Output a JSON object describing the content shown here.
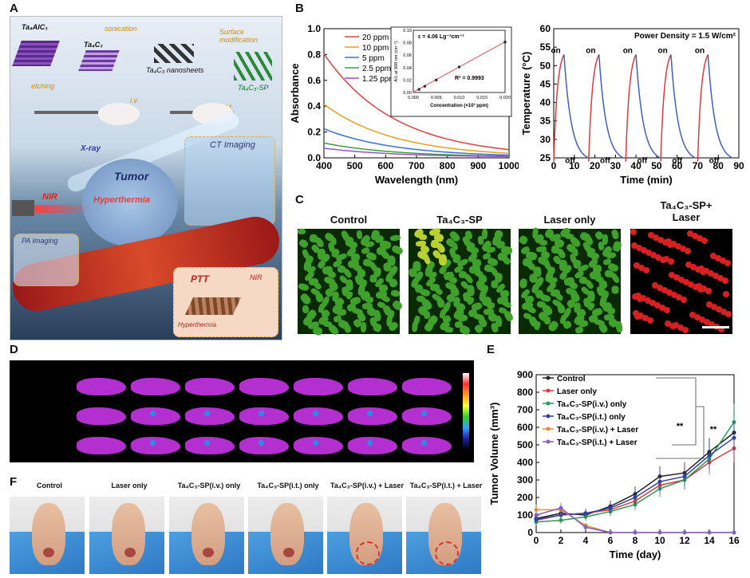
{
  "panels": {
    "A": "A",
    "B": "B",
    "C": "C",
    "D": "D",
    "E": "E",
    "F": "F"
  },
  "schematic": {
    "ta4alc3": "Ta₄AlC₃",
    "ta4c3": "Ta₄C₃",
    "sonication": "sonication",
    "surface_mod": "Surface modification",
    "nanosheets": "Ta₄C₃ nanosheets",
    "etching": "etching",
    "iv": "i.v.",
    "it": "i.t.",
    "sp": "Ta₄C₃-SP",
    "xray": "X-ray",
    "tumor": "Tumor",
    "ct": "CT Imaging",
    "nir": "NIR",
    "hyper": "Hyperthermia",
    "pa": "PA Imaging",
    "ptt": "PTT",
    "hyper2": "Hyperthermia",
    "nir2": "NIR"
  },
  "chart_absorb": {
    "type": "line",
    "xlabel": "Wavelength (nm)",
    "ylabel": "Absorbance",
    "xlim": [
      400,
      1000
    ],
    "ylim": [
      0,
      1.0
    ],
    "xticks": [
      "400",
      "500",
      "600",
      "700",
      "800",
      "900",
      "1000"
    ],
    "yticks": [
      "0.0",
      "0.2",
      "0.4",
      "0.6",
      "0.8",
      "1.0"
    ],
    "series": [
      {
        "name": "20 ppm",
        "color": "#e04040",
        "start": 0.8
      },
      {
        "name": "10 ppm",
        "color": "#e8a020",
        "start": 0.41
      },
      {
        "name": "5 ppm",
        "color": "#3e6fd8",
        "start": 0.22
      },
      {
        "name": "2.5 ppm",
        "color": "#3aa040",
        "start": 0.11
      },
      {
        "name": "1.25 ppm",
        "color": "#9a50c8",
        "start": 0.07
      }
    ],
    "inset": {
      "eq": "ε = 4.06 Lg⁻¹cm⁻¹",
      "r2": "R² = 0.9993",
      "xlabel": "Concentration (×10³ ppm)",
      "ylabel": "A/L at 808 nm (cm⁻¹)",
      "xticks": [
        "0.000",
        "0.005",
        "0.010",
        "0.015",
        "0.020"
      ],
      "yticks": [
        "0.00",
        "0.02",
        "0.04",
        "0.06",
        "0.08",
        "0.10"
      ],
      "x": [
        0.00125,
        0.0025,
        0.005,
        0.01,
        0.02
      ],
      "y": [
        0.005,
        0.01,
        0.02,
        0.041,
        0.081
      ]
    }
  },
  "chart_temp": {
    "type": "line",
    "xlabel": "Time (min)",
    "ylabel": "Temperature (°C)",
    "xlim": [
      0,
      90
    ],
    "ylim": [
      25,
      60
    ],
    "xticks": [
      "0",
      "10",
      "20",
      "30",
      "40",
      "50",
      "60",
      "70",
      "80",
      "90"
    ],
    "yticks": [
      "25",
      "30",
      "35",
      "40",
      "45",
      "50",
      "55",
      "60"
    ],
    "title": "Power Density = 1.5 W/cm²",
    "cycles": [
      0,
      17,
      35,
      52,
      70
    ],
    "on_label": "on",
    "off_label": "off",
    "peak": 53,
    "base": 24
  },
  "micro": {
    "labels": [
      "Control",
      "Ta₄C₃-SP",
      "Laser only",
      "Ta₄C₃-SP+\nLaser"
    ],
    "colors": [
      "#3fa02c",
      "#3fa02c",
      "#3fa02c",
      "#d82020"
    ]
  },
  "chart_tumor": {
    "type": "line",
    "xlabel": "Time (day)",
    "ylabel": "Tumor Volume (mm³)",
    "xlim": [
      0,
      16
    ],
    "ylim": [
      0,
      900
    ],
    "xticks": [
      "0",
      "2",
      "4",
      "6",
      "8",
      "10",
      "12",
      "14",
      "16"
    ],
    "yticks": [
      "0",
      "100",
      "200",
      "300",
      "400",
      "500",
      "600",
      "700",
      "800",
      "900"
    ],
    "x": [
      0,
      2,
      4,
      6,
      8,
      10,
      12,
      14,
      16
    ],
    "sig": "**",
    "series": [
      {
        "name": "Control",
        "color": "#222222",
        "values": [
          80,
          110,
          100,
          150,
          220,
          320,
          340,
          460,
          570
        ]
      },
      {
        "name": "Laser only",
        "color": "#e03a3a",
        "values": [
          70,
          100,
          110,
          130,
          180,
          270,
          300,
          400,
          480
        ]
      },
      {
        "name": "Ta₄C₃-SP(i.v.) only",
        "color": "#2a9a5a",
        "values": [
          60,
          70,
          90,
          120,
          160,
          250,
          300,
          420,
          630
        ]
      },
      {
        "name": "Ta₄C₃-SP(i.t.) only",
        "color": "#3040a0",
        "values": [
          75,
          100,
          110,
          140,
          200,
          290,
          320,
          440,
          540
        ]
      },
      {
        "name": "Ta₄C₃-SP(i.v.) + Laser",
        "color": "#e89030",
        "values": [
          130,
          130,
          40,
          0,
          0,
          0,
          0,
          0,
          0
        ]
      },
      {
        "name": "Ta₄C₃-SP(i.t.) + Laser",
        "color": "#8060c0",
        "values": [
          100,
          140,
          30,
          0,
          0,
          0,
          0,
          0,
          0
        ]
      }
    ]
  },
  "photos": {
    "labels": [
      "Control",
      "Laser only",
      "Ta₄C₃-SP(i.v.) only",
      "Ta₄C₃-SP(i.t.) only",
      "Ta₄C₃-SP(i.v.) + Laser",
      "Ta₄C₃-SP(i.t.) + Laser"
    ]
  }
}
